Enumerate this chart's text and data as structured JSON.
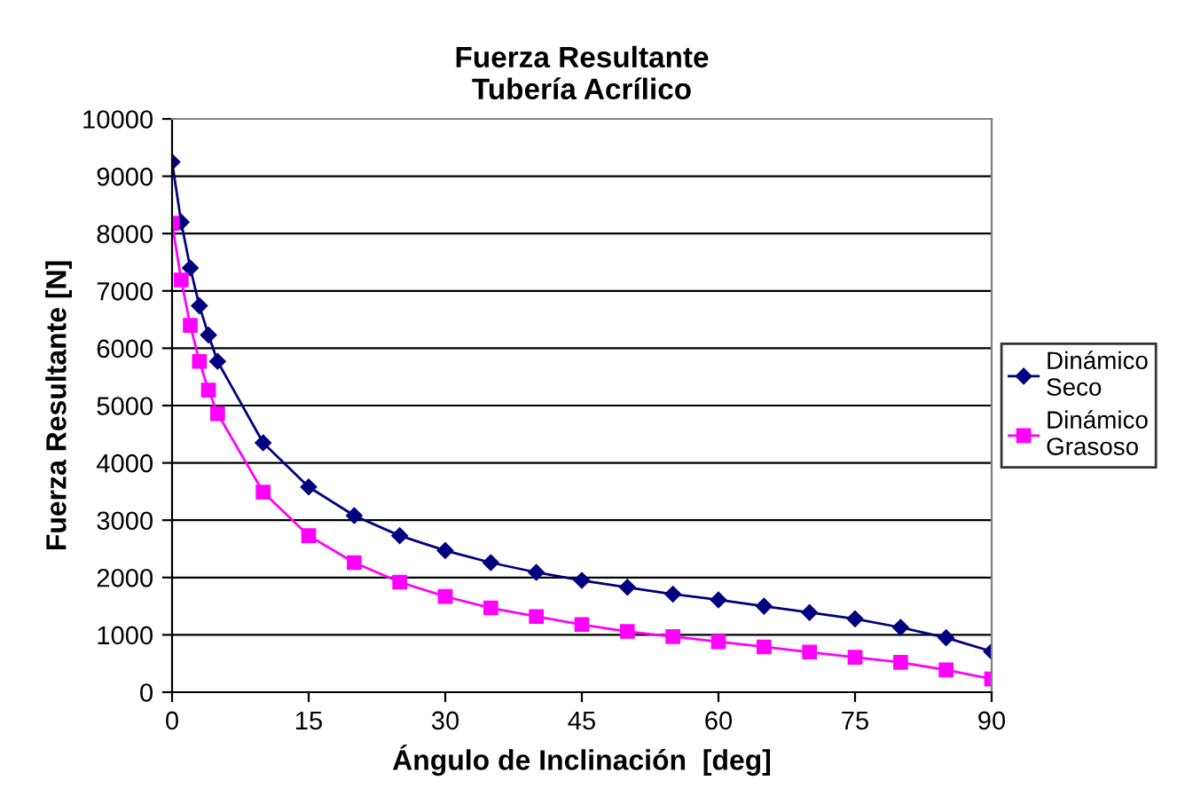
{
  "chart_data": {
    "type": "line",
    "title": "Fuerza Resultante\nTubería Acrílico",
    "xlabel": "Ángulo de Inclinación  [deg]",
    "ylabel": "Fuerza Resultante [N]",
    "x": [
      0,
      1,
      2,
      3,
      4,
      5,
      10,
      15,
      20,
      25,
      30,
      35,
      40,
      45,
      50,
      55,
      60,
      65,
      70,
      75,
      80,
      85,
      90
    ],
    "series": [
      {
        "name": "Dinámico\nSeco",
        "color": "#000080",
        "marker": "diamond",
        "values": [
          9250,
          8200,
          7400,
          6740,
          6230,
          5770,
          4350,
          3580,
          3080,
          2730,
          2470,
          2260,
          2090,
          1950,
          1830,
          1710,
          1610,
          1500,
          1390,
          1280,
          1130,
          950,
          710
        ]
      },
      {
        "name": "Dinámico\nGrasoso",
        "color": "#ff00ff",
        "marker": "square",
        "values": [
          8180,
          7190,
          6400,
          5770,
          5270,
          4860,
          3490,
          2730,
          2260,
          1920,
          1670,
          1470,
          1320,
          1180,
          1060,
          970,
          880,
          790,
          700,
          610,
          520,
          390,
          230
        ]
      }
    ],
    "xlim": [
      0,
      90
    ],
    "xticks": [
      0,
      15,
      30,
      45,
      60,
      75,
      90
    ],
    "ylim": [
      0,
      10000
    ],
    "yticks": [
      0,
      1000,
      2000,
      3000,
      4000,
      5000,
      6000,
      7000,
      8000,
      9000,
      10000
    ],
    "grid": "y",
    "legend": "right",
    "line_style": "solid"
  }
}
